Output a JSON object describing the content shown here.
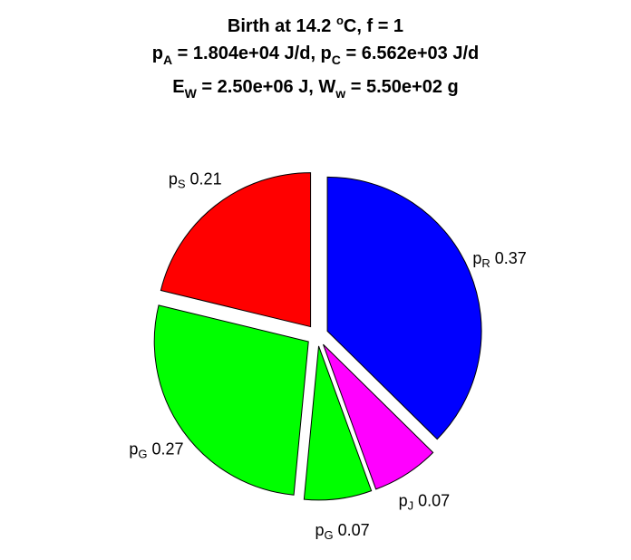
{
  "chart_data": {
    "type": "pie",
    "title_lines": [
      {
        "parts": [
          {
            "t": "Birth at 14.2 "
          },
          {
            "t": "o",
            "sup": true
          },
          {
            "t": "C, f = 1"
          }
        ]
      },
      {
        "parts": [
          {
            "t": "p"
          },
          {
            "t": "A",
            "sub": true
          },
          {
            "t": " = 1.804e+04 J/d, p"
          },
          {
            "t": "C",
            "sub": true
          },
          {
            "t": " = 6.562e+03 J/d"
          }
        ]
      },
      {
        "parts": [
          {
            "t": "E"
          },
          {
            "t": "W",
            "sub": true
          },
          {
            "t": " = 2.50e+06 J, W"
          },
          {
            "t": "w",
            "sub": true
          },
          {
            "t": " = 5.50e+02 g"
          }
        ]
      }
    ],
    "slices": [
      {
        "base": "p",
        "sub": "R",
        "value_label": "0.37",
        "value": 0.37,
        "color": "#0000ff"
      },
      {
        "base": "p",
        "sub": "J",
        "value_label": "0.07",
        "value": 0.07,
        "color": "#ff00ff"
      },
      {
        "base": "p",
        "sub": "G",
        "value_label": "0.07",
        "value": 0.07,
        "color": "#00ff00"
      },
      {
        "base": "p",
        "sub": "G",
        "value_label": "0.27",
        "value": 0.27,
        "color": "#00ff00"
      },
      {
        "base": "p",
        "sub": "S",
        "value_label": "0.21",
        "value": 0.21,
        "color": "#ff0000"
      }
    ],
    "start": "top",
    "direction": "clockwise",
    "exploded": true
  }
}
